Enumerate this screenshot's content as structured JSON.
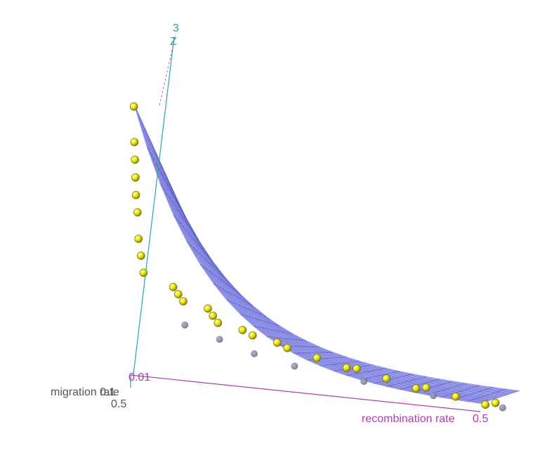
{
  "chart_data": {
    "type": "scatter",
    "subtype": "3d-surface-with-points",
    "axes": {
      "z": {
        "label": "Z",
        "tick_labels": [
          "3"
        ],
        "color": "#2aa6a6"
      },
      "x": {
        "label": "recombination rate",
        "tick_labels": [
          "0.5"
        ],
        "color": "#b03cb0"
      },
      "y": {
        "label": "migration rate",
        "tick_labels": [
          "0.01",
          "0.1",
          "0.5"
        ],
        "color": "#555555"
      }
    },
    "surface": {
      "color": "#8a8cf2",
      "description": "fitted response surface, decreasing from high at low recombination/low migration toward 0 at high recombination"
    },
    "points_color": "#e6e000",
    "hidden_points_color": "#6a6a80",
    "series": [
      {
        "values": [
          {
            "x": 0.0,
            "y": 0.01,
            "z": 3.0
          },
          {
            "x": 0.0,
            "y": 0.02,
            "z": 2.6
          },
          {
            "x": 0.0,
            "y": 0.03,
            "z": 2.4
          },
          {
            "x": 0.0,
            "y": 0.04,
            "z": 2.2
          },
          {
            "x": 0.0,
            "y": 0.05,
            "z": 2.0
          },
          {
            "x": 0.0,
            "y": 0.08,
            "z": 1.8
          },
          {
            "x": 0.0,
            "y": 0.1,
            "z": 1.5
          },
          {
            "x": 0.0,
            "y": 0.15,
            "z": 1.3
          },
          {
            "x": 0.0,
            "y": 0.2,
            "z": 1.1
          },
          {
            "x": 0.05,
            "y": 0.1,
            "z": 1.0
          },
          {
            "x": 0.05,
            "y": 0.2,
            "z": 0.9
          },
          {
            "x": 0.05,
            "y": 0.3,
            "z": 0.8
          },
          {
            "x": 0.1,
            "y": 0.1,
            "z": 0.8
          },
          {
            "x": 0.1,
            "y": 0.2,
            "z": 0.7
          },
          {
            "x": 0.1,
            "y": 0.3,
            "z": 0.6
          },
          {
            "x": 0.15,
            "y": 0.1,
            "z": 0.6
          },
          {
            "x": 0.15,
            "y": 0.3,
            "z": 0.5
          },
          {
            "x": 0.2,
            "y": 0.1,
            "z": 0.5
          },
          {
            "x": 0.2,
            "y": 0.3,
            "z": 0.4
          },
          {
            "x": 0.25,
            "y": 0.2,
            "z": 0.35
          },
          {
            "x": 0.3,
            "y": 0.1,
            "z": 0.3
          },
          {
            "x": 0.3,
            "y": 0.3,
            "z": 0.25
          },
          {
            "x": 0.35,
            "y": 0.2,
            "z": 0.2
          },
          {
            "x": 0.4,
            "y": 0.1,
            "z": 0.15
          },
          {
            "x": 0.4,
            "y": 0.3,
            "z": 0.12
          },
          {
            "x": 0.45,
            "y": 0.2,
            "z": 0.08
          },
          {
            "x": 0.5,
            "y": 0.1,
            "z": 0.05
          },
          {
            "x": 0.5,
            "y": 0.3,
            "z": 0.03
          }
        ]
      }
    ],
    "grid": true,
    "legend": "none"
  }
}
